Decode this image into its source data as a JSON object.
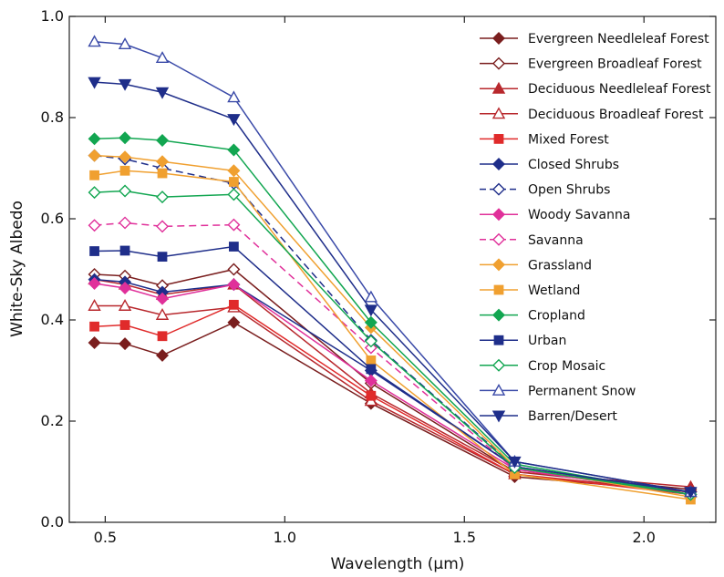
{
  "chart_data": {
    "type": "line",
    "xlabel": "Wavelength (μm)",
    "ylabel": "White-Sky Albedo",
    "xlim": [
      0.4,
      2.2
    ],
    "ylim": [
      0.0,
      1.0
    ],
    "x_ticks": [
      "0.5",
      "1.0",
      "1.5",
      "2.0"
    ],
    "y_ticks": [
      "0.0",
      "0.2",
      "0.4",
      "0.6",
      "0.8",
      "1.0"
    ],
    "legend_position": "top-right",
    "grid": false,
    "x": [
      0.47,
      0.555,
      0.659,
      0.858,
      1.24,
      1.64,
      2.13
    ],
    "series": [
      {
        "name": "Evergreen Needleleaf Forest",
        "color": "#7a1e1e",
        "marker": "diamond",
        "filled": true,
        "dashed": false,
        "values": [
          0.355,
          0.353,
          0.33,
          0.395,
          0.235,
          0.09,
          0.06
        ]
      },
      {
        "name": "Evergreen Broadleaf Forest",
        "color": "#7a1e1e",
        "marker": "diamond",
        "filled": false,
        "dashed": false,
        "values": [
          0.49,
          0.487,
          0.468,
          0.5,
          0.275,
          0.1,
          0.065
        ]
      },
      {
        "name": "Deciduous Needleleaf Forest",
        "color": "#b8282d",
        "marker": "triangle-up",
        "filled": true,
        "dashed": false,
        "values": [
          0.48,
          0.47,
          0.45,
          0.47,
          0.255,
          0.1,
          0.07
        ]
      },
      {
        "name": "Deciduous Broadleaf Forest",
        "color": "#b8282d",
        "marker": "triangle-up",
        "filled": false,
        "dashed": false,
        "values": [
          0.428,
          0.428,
          0.41,
          0.425,
          0.24,
          0.095,
          0.06
        ]
      },
      {
        "name": "Mixed Forest",
        "color": "#e02b2b",
        "marker": "square",
        "filled": true,
        "dashed": false,
        "values": [
          0.387,
          0.39,
          0.368,
          0.43,
          0.25,
          0.095,
          0.055
        ]
      },
      {
        "name": "Closed Shrubs",
        "color": "#1f2e8a",
        "marker": "diamond",
        "filled": true,
        "dashed": false,
        "values": [
          0.48,
          0.475,
          0.455,
          0.47,
          0.3,
          0.11,
          0.06
        ]
      },
      {
        "name": "Open Shrubs",
        "color": "#1f2e8a",
        "marker": "diamond",
        "filled": false,
        "dashed": true,
        "values": [
          0.725,
          0.718,
          0.7,
          0.67,
          0.36,
          0.11,
          0.055
        ]
      },
      {
        "name": "Woody Savanna",
        "color": "#e0309a",
        "marker": "diamond",
        "filled": true,
        "dashed": false,
        "values": [
          0.472,
          0.463,
          0.442,
          0.47,
          0.28,
          0.105,
          0.055
        ]
      },
      {
        "name": "Savanna",
        "color": "#e0309a",
        "marker": "diamond",
        "filled": false,
        "dashed": true,
        "values": [
          0.587,
          0.592,
          0.585,
          0.588,
          0.345,
          0.105,
          0.055
        ]
      },
      {
        "name": "Grassland",
        "color": "#f0a030",
        "marker": "diamond",
        "filled": true,
        "dashed": false,
        "values": [
          0.725,
          0.722,
          0.713,
          0.695,
          0.385,
          0.11,
          0.05
        ]
      },
      {
        "name": "Wetland",
        "color": "#f0a030",
        "marker": "square",
        "filled": true,
        "dashed": false,
        "values": [
          0.686,
          0.695,
          0.69,
          0.673,
          0.32,
          0.095,
          0.045
        ]
      },
      {
        "name": "Cropland",
        "color": "#12a651",
        "marker": "diamond",
        "filled": true,
        "dashed": false,
        "values": [
          0.758,
          0.76,
          0.755,
          0.736,
          0.395,
          0.115,
          0.055
        ]
      },
      {
        "name": "Urban",
        "color": "#1f2e8a",
        "marker": "square",
        "filled": true,
        "dashed": false,
        "values": [
          0.536,
          0.537,
          0.525,
          0.545,
          0.303,
          0.11,
          0.06
        ]
      },
      {
        "name": "Crop Mosaic",
        "color": "#12a651",
        "marker": "diamond",
        "filled": false,
        "dashed": false,
        "values": [
          0.652,
          0.655,
          0.643,
          0.648,
          0.358,
          0.108,
          0.055
        ]
      },
      {
        "name": "Permanent Snow",
        "color": "#3a4aa8",
        "marker": "triangle-up",
        "filled": false,
        "dashed": false,
        "values": [
          0.95,
          0.945,
          0.918,
          0.84,
          0.445,
          0.12,
          0.06
        ]
      },
      {
        "name": "Barren/Desert",
        "color": "#1f2e8a",
        "marker": "triangle-down",
        "filled": true,
        "dashed": false,
        "values": [
          0.87,
          0.866,
          0.85,
          0.797,
          0.42,
          0.12,
          0.06
        ]
      }
    ]
  }
}
